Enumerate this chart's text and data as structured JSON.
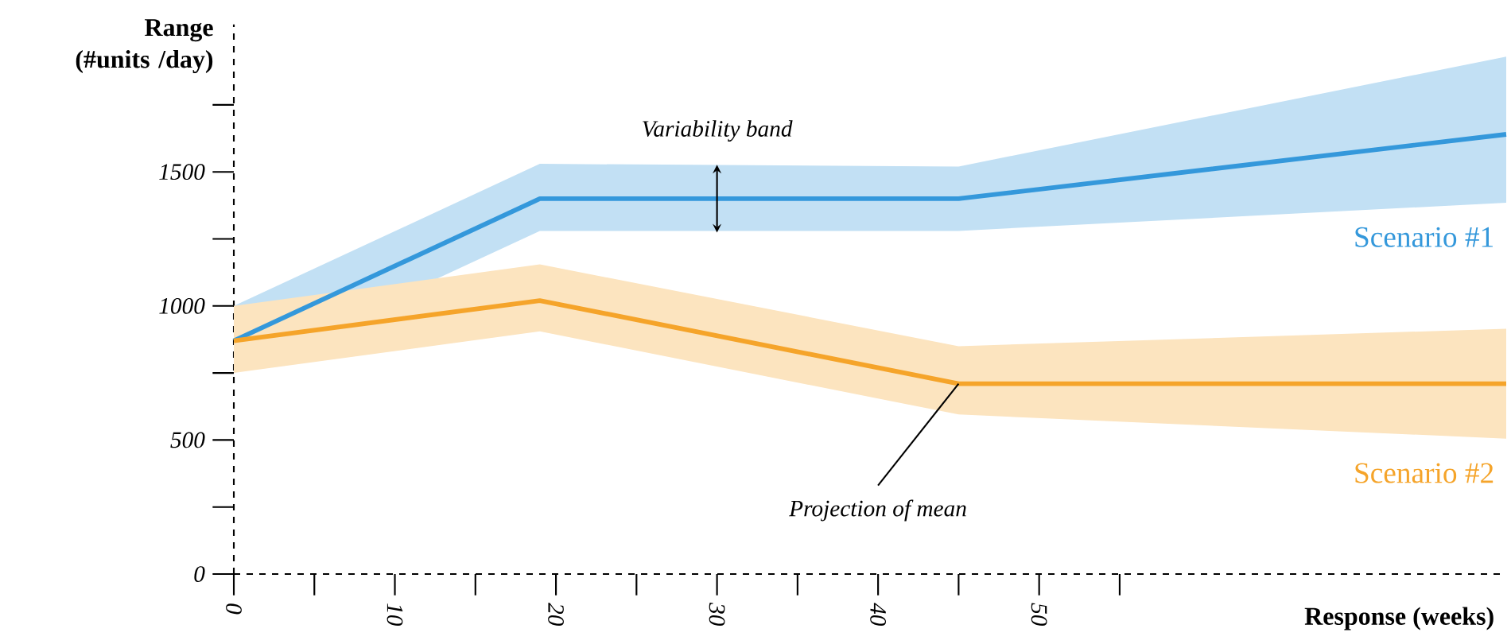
{
  "chart_data": {
    "type": "line",
    "xlabel": "Response (weeks)",
    "ylabel": "Range (#units /day)",
    "xlim": [
      0,
      79
    ],
    "ylim": [
      0,
      2050
    ],
    "xticks": [
      0,
      {
        "value": 5,
        "label": null
      },
      10,
      {
        "value": 15,
        "label": null
      },
      20,
      {
        "value": 25,
        "label": null
      },
      30,
      {
        "value": 35,
        "label": null
      },
      40,
      {
        "value": 45,
        "label": null
      },
      50,
      {
        "value": 55,
        "label": null
      }
    ],
    "yticks": [
      0,
      {
        "value": 250,
        "label": null
      },
      500,
      {
        "value": 750,
        "label": null
      },
      1000,
      {
        "value": 1250,
        "label": null
      },
      1500,
      {
        "value": 1750,
        "label": null
      }
    ],
    "grid": false,
    "marker": "none",
    "line_style": "solid",
    "x": [
      0,
      19,
      45,
      79
    ],
    "series": [
      {
        "name": "Scenario #1",
        "color": "#3498db",
        "values": [
          870,
          1400,
          1400,
          1640
        ],
        "lower": [
          750,
          1280,
          1280,
          1385
        ],
        "upper": [
          1000,
          1530,
          1520,
          1930
        ]
      },
      {
        "name": "Scenario #2",
        "color": "#f5a42a",
        "values": [
          870,
          1020,
          710,
          710
        ],
        "lower": [
          750,
          905,
          595,
          505
        ],
        "upper": [
          1000,
          1155,
          850,
          915
        ]
      }
    ],
    "annotations": [
      {
        "text": "Variability band",
        "x": 30,
        "y": 1400
      },
      {
        "text": "Projection of mean",
        "x": 45,
        "y": 710
      }
    ]
  }
}
